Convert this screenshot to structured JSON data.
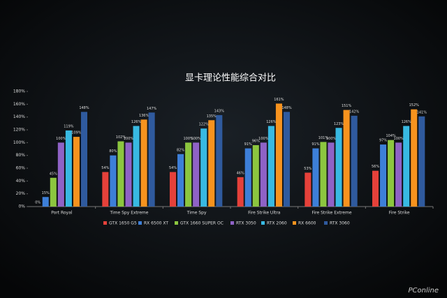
{
  "chart_data": {
    "type": "bar",
    "title": "显卡理论性能综合对比",
    "watermark": "PConline",
    "categories": [
      "Port Royal",
      "Time Spy Extreme",
      "Time Spy",
      "Fire Strike Ultra",
      "Fire Strike Extreme",
      "Fire Strike"
    ],
    "series": [
      {
        "name": "GTX 1650 G5",
        "color": "#e5413a",
        "values": [
          0,
          54,
          54,
          46,
          53,
          56
        ],
        "value_labels": [
          "0%",
          "54%",
          "54%",
          "46%",
          "53%",
          "56%"
        ]
      },
      {
        "name": "RX 6500 XT",
        "color": "#3d7fd8",
        "values": [
          15,
          80,
          82,
          91,
          91,
          97
        ],
        "value_labels": [
          "15%",
          "80%",
          "82%",
          "91%",
          "91%",
          "97%"
        ]
      },
      {
        "name": "GTX 1660 SUPER OC",
        "color": "#8cc63f",
        "values": [
          45,
          102,
          100,
          96,
          101,
          104
        ],
        "value_labels": [
          "45%",
          "102%",
          "100%",
          "96%",
          "101%",
          "104%"
        ]
      },
      {
        "name": "RTX 3050",
        "color": "#8f62c6",
        "values": [
          100,
          100,
          100,
          100,
          100,
          100
        ],
        "value_labels": [
          "100%",
          "100%",
          "100%",
          "100%",
          "100%",
          "100%"
        ]
      },
      {
        "name": "RTX 2060",
        "color": "#38b9e2",
        "values": [
          119,
          126,
          122,
          126,
          123,
          126
        ],
        "value_labels": [
          "119%",
          "126%",
          "122%",
          "126%",
          "123%",
          "126%"
        ]
      },
      {
        "name": "RX 6600",
        "color": "#f7931e",
        "values": [
          109,
          136,
          135,
          161,
          151,
          152
        ],
        "value_labels": [
          "109%",
          "136%",
          "135%",
          "161%",
          "151%",
          "152%"
        ]
      },
      {
        "name": "RTX 3060",
        "color": "#2f5a9e",
        "values": [
          148,
          147,
          143,
          148,
          142,
          141
        ],
        "value_labels": [
          "148%",
          "147%",
          "143%",
          "148%",
          "142%",
          "141%"
        ]
      }
    ],
    "ylim": [
      0,
      180
    ],
    "yticks": [
      {
        "value": 0,
        "label": "0%"
      },
      {
        "value": 20,
        "label": "20%"
      },
      {
        "value": 40,
        "label": "40%"
      },
      {
        "value": 60,
        "label": "60%"
      },
      {
        "value": 80,
        "label": "80%"
      },
      {
        "value": 100,
        "label": "100%"
      },
      {
        "value": 120,
        "label": "120%"
      },
      {
        "value": 140,
        "label": "140%"
      },
      {
        "value": 160,
        "label": "160%"
      },
      {
        "value": 180,
        "label": "180%"
      }
    ],
    "grid": false
  }
}
